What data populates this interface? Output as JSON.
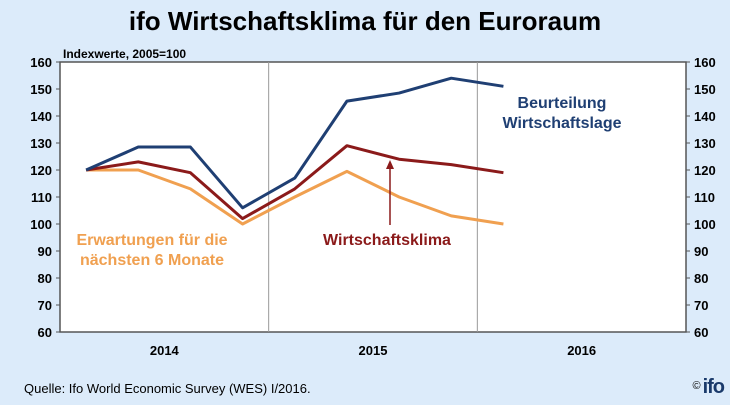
{
  "chart_data": {
    "type": "line",
    "title": "ifo Wirtschaftsklima für den Euroraum",
    "ylabel": "Indexwerte, 2005=100",
    "ylim": [
      60,
      160
    ],
    "yticks": [
      60,
      70,
      80,
      90,
      100,
      110,
      120,
      130,
      140,
      150,
      160
    ],
    "x_categories": [
      "2014",
      "2015",
      "2016"
    ],
    "x": [
      "2014 Q1",
      "2014 Q2",
      "2014 Q3",
      "2014 Q4",
      "2015 Q1",
      "2015 Q2",
      "2015 Q3",
      "2015 Q4",
      "2016 Q1"
    ],
    "grid": false,
    "series": [
      {
        "name": "Beurteilung Wirtschaftslage",
        "label_lines": [
          "Beurteilung",
          "Wirtschaftslage"
        ],
        "color": "#1f3f73",
        "values": [
          120,
          128.5,
          128.5,
          106,
          117,
          145.5,
          148.5,
          154,
          151
        ]
      },
      {
        "name": "Wirtschaftsklima",
        "label_lines": [
          "Wirtschaftsklima"
        ],
        "color": "#8b1a1a",
        "values": [
          120,
          123,
          119,
          102,
          113,
          129,
          124,
          122,
          119
        ]
      },
      {
        "name": "Erwartungen für die nächsten 6 Monate",
        "label_lines": [
          "Erwartungen für die",
          "nächsten 6 Monate"
        ],
        "color": "#f0a050",
        "values": [
          120,
          120,
          113,
          100,
          110,
          119.5,
          110,
          103,
          100
        ]
      }
    ]
  },
  "source": "Quelle: Ifo World Economic Survey (WES) I/2016.",
  "logo": {
    "copyright": "©",
    "text": "ifo"
  }
}
